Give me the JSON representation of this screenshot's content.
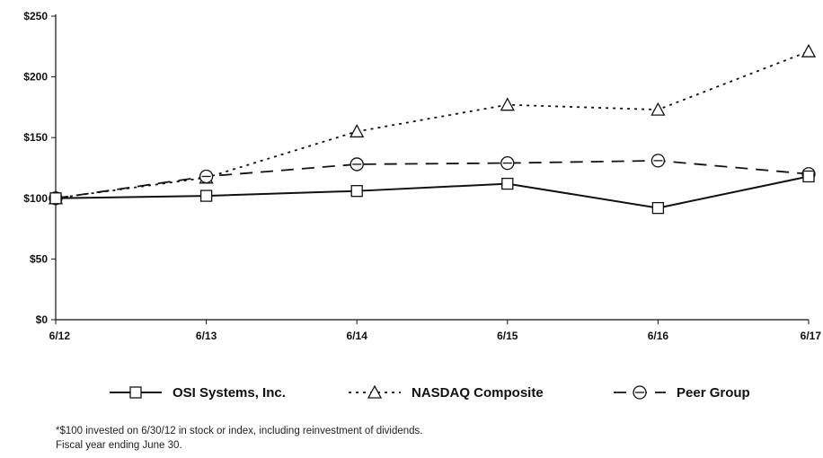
{
  "chart_data": {
    "type": "line",
    "title": "",
    "xlabel": "",
    "ylabel": "",
    "categories": [
      "6/12",
      "6/13",
      "6/14",
      "6/15",
      "6/16",
      "6/17"
    ],
    "ylim": [
      0,
      250
    ],
    "yticks": [
      0,
      50,
      100,
      150,
      200,
      250
    ],
    "ytick_labels": [
      "$0",
      "$50",
      "$100",
      "$150",
      "$200",
      "$250"
    ],
    "grid": false,
    "legend_position": "bottom",
    "series": [
      {
        "name": "OSI Systems, Inc.",
        "values": [
          100,
          102,
          106,
          112,
          92,
          118
        ],
        "line_style": "solid",
        "marker": "square"
      },
      {
        "name": "NASDAQ Composite",
        "values": [
          100,
          117,
          155,
          177,
          173,
          221
        ],
        "line_style": "dotted",
        "marker": "triangle"
      },
      {
        "name": "Peer Group",
        "values": [
          100,
          118,
          128,
          129,
          131,
          120
        ],
        "line_style": "dashed",
        "marker": "circle"
      }
    ]
  },
  "footnotes": {
    "line1": "*$100 invested on 6/30/12 in stock or index, including reinvestment of dividends.",
    "line2": "Fiscal year ending June 30."
  }
}
